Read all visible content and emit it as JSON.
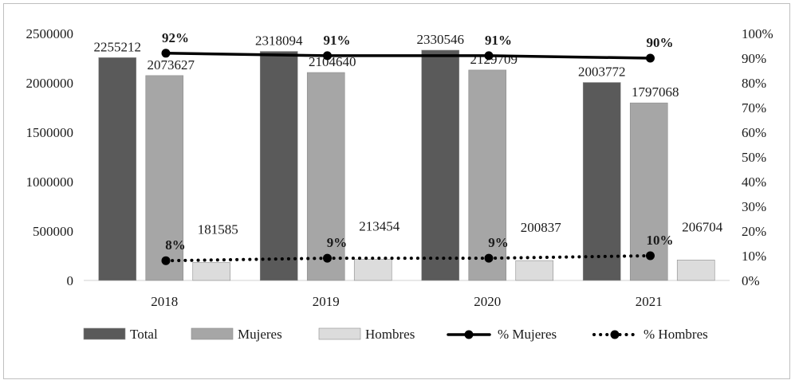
{
  "chart_data": {
    "type": "bar",
    "categories": [
      "2018",
      "2019",
      "2020",
      "2021"
    ],
    "series": [
      {
        "name": "Total",
        "kind": "bar",
        "axis": "left",
        "color": "#5a5a5a",
        "values": [
          2255212,
          2318094,
          2330546,
          2003772
        ],
        "labels": [
          "2255212",
          "2318094",
          "2330546",
          "2003772"
        ]
      },
      {
        "name": "Mujeres",
        "kind": "bar",
        "axis": "left",
        "color": "#a6a6a6",
        "values": [
          2073627,
          2104640,
          2129709,
          1797068
        ],
        "labels": [
          "2073627",
          "2104640",
          "2129709",
          "1797068"
        ]
      },
      {
        "name": "Hombres",
        "kind": "bar",
        "axis": "left",
        "color": "#dcdcdc",
        "values": [
          181585,
          213454,
          200837,
          206704
        ],
        "labels": [
          "181585",
          "213454",
          "200837",
          "206704"
        ]
      },
      {
        "name": "% Mujeres",
        "kind": "line",
        "style": "solid",
        "axis": "right",
        "color": "#000000",
        "values": [
          92,
          91,
          91,
          90
        ],
        "labels": [
          "92%",
          "91%",
          "91%",
          "90%"
        ]
      },
      {
        "name": "% Hombres",
        "kind": "line",
        "style": "dotted",
        "axis": "right",
        "color": "#000000",
        "values": [
          8,
          9,
          9,
          10
        ],
        "labels": [
          "8%",
          "9%",
          "9%",
          "10%"
        ]
      }
    ],
    "y_left": {
      "min": 0,
      "max": 2500000,
      "ticks": [
        "0",
        "500000",
        "1000000",
        "1500000",
        "2000000",
        "2500000"
      ]
    },
    "y_right": {
      "min": 0,
      "max": 100,
      "ticks": [
        "0%",
        "10%",
        "20%",
        "30%",
        "40%",
        "50%",
        "60%",
        "70%",
        "80%",
        "90%",
        "100%"
      ]
    },
    "grid": false,
    "legend": "bottom"
  }
}
